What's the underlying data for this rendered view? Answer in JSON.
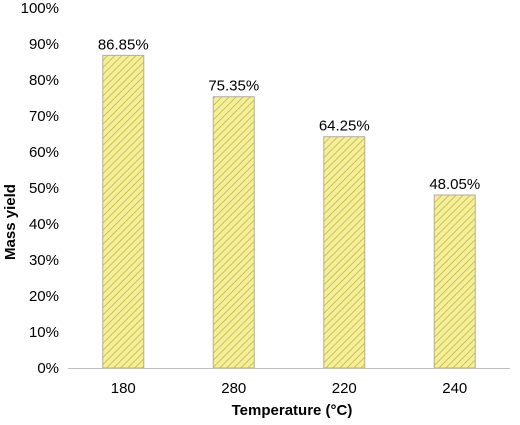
{
  "chart_data": {
    "type": "bar",
    "categories": [
      "180",
      "280",
      "220",
      "240"
    ],
    "values": [
      86.85,
      75.35,
      64.25,
      48.05
    ],
    "data_labels": [
      "86.85%",
      "75.35%",
      "64.25%",
      "48.05%"
    ],
    "xlabel": "Temperature (°C)",
    "ylabel": "Mass yield",
    "ylim": [
      0,
      100
    ],
    "yticks": [
      0,
      10,
      20,
      30,
      40,
      50,
      60,
      70,
      80,
      90,
      100
    ],
    "ytick_labels": [
      "0%",
      "10%",
      "20%",
      "30%",
      "40%",
      "50%",
      "60%",
      "70%",
      "80%",
      "90%",
      "100%"
    ],
    "grid": false,
    "legend": "none",
    "colors": {
      "bar_fill": "#f3ef9c",
      "bar_hatch": "#cfc24a",
      "bar_stroke": "#b5b08a",
      "axis": "#bfbfbf"
    }
  }
}
